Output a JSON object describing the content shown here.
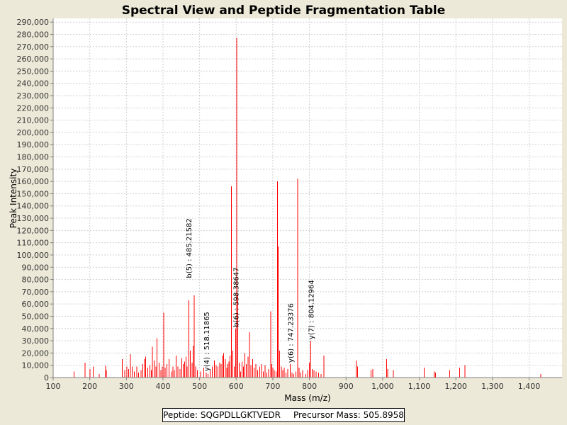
{
  "chart_data": {
    "type": "bar",
    "title": "Spectral View and Peptide Fragmentation Table",
    "xlabel": "Mass (m/z)",
    "ylabel": "Peak Intensity",
    "xlim": [
      100,
      1490
    ],
    "ylim": [
      0,
      293000
    ],
    "x_ticks": [
      "100",
      "200",
      "300",
      "400",
      "500",
      "600",
      "700",
      "800",
      "900",
      "1,000",
      "1,100",
      "1,200",
      "1,300",
      "1,400"
    ],
    "y_ticks": [
      "0",
      "10,000",
      "20,000",
      "30,000",
      "40,000",
      "50,000",
      "60,000",
      "70,000",
      "80,000",
      "90,000",
      "100,000",
      "110,000",
      "120,000",
      "130,000",
      "140,000",
      "150,000",
      "160,000",
      "170,000",
      "180,000",
      "190,000",
      "200,000",
      "210,000",
      "220,000",
      "230,000",
      "240,000",
      "250,000",
      "260,000",
      "270,000",
      "280,000",
      "290,000"
    ],
    "grid": true,
    "bar_color": "#ff0000",
    "peaks": [
      {
        "x": 157,
        "y": 5000
      },
      {
        "x": 187,
        "y": 12000
      },
      {
        "x": 201,
        "y": 7000
      },
      {
        "x": 209,
        "y": 9000
      },
      {
        "x": 226,
        "y": 3000
      },
      {
        "x": 243,
        "y": 9500
      },
      {
        "x": 245,
        "y": 6000
      },
      {
        "x": 289,
        "y": 15000
      },
      {
        "x": 296,
        "y": 6000
      },
      {
        "x": 301,
        "y": 9000
      },
      {
        "x": 306,
        "y": 7000
      },
      {
        "x": 311,
        "y": 19000
      },
      {
        "x": 316,
        "y": 9000
      },
      {
        "x": 322,
        "y": 5000
      },
      {
        "x": 328,
        "y": 9000
      },
      {
        "x": 333,
        "y": 4000
      },
      {
        "x": 340,
        "y": 6000
      },
      {
        "x": 345,
        "y": 11000
      },
      {
        "x": 350,
        "y": 15000
      },
      {
        "x": 353,
        "y": 17000
      },
      {
        "x": 358,
        "y": 8000
      },
      {
        "x": 364,
        "y": 10000
      },
      {
        "x": 368,
        "y": 6000
      },
      {
        "x": 371,
        "y": 25000
      },
      {
        "x": 376,
        "y": 14000
      },
      {
        "x": 381,
        "y": 9000
      },
      {
        "x": 384,
        "y": 32000
      },
      {
        "x": 389,
        "y": 12000
      },
      {
        "x": 394,
        "y": 6000
      },
      {
        "x": 398,
        "y": 9000
      },
      {
        "x": 402,
        "y": 53000
      },
      {
        "x": 406,
        "y": 8000
      },
      {
        "x": 411,
        "y": 11000
      },
      {
        "x": 417,
        "y": 15000
      },
      {
        "x": 423,
        "y": 5000
      },
      {
        "x": 427,
        "y": 9000
      },
      {
        "x": 431,
        "y": 6000
      },
      {
        "x": 436,
        "y": 18000
      },
      {
        "x": 441,
        "y": 9000
      },
      {
        "x": 447,
        "y": 7000
      },
      {
        "x": 451,
        "y": 16000
      },
      {
        "x": 455,
        "y": 11000
      },
      {
        "x": 459,
        "y": 13000
      },
      {
        "x": 463,
        "y": 17000
      },
      {
        "x": 466,
        "y": 9000
      },
      {
        "x": 471,
        "y": 63000
      },
      {
        "x": 475,
        "y": 22000
      },
      {
        "x": 479,
        "y": 12000
      },
      {
        "x": 482,
        "y": 26000
      },
      {
        "x": 485.2,
        "y": 67000
      },
      {
        "x": 489,
        "y": 9000
      },
      {
        "x": 494,
        "y": 6000
      },
      {
        "x": 503,
        "y": 5000
      },
      {
        "x": 511,
        "y": 8000
      },
      {
        "x": 518.1,
        "y": 4000
      },
      {
        "x": 523,
        "y": 3000
      },
      {
        "x": 529,
        "y": 6000
      },
      {
        "x": 535,
        "y": 9000
      },
      {
        "x": 540,
        "y": 14000
      },
      {
        "x": 545,
        "y": 10000
      },
      {
        "x": 550,
        "y": 9000
      },
      {
        "x": 555,
        "y": 12000
      },
      {
        "x": 559,
        "y": 11000
      },
      {
        "x": 563,
        "y": 18000
      },
      {
        "x": 566,
        "y": 20000
      },
      {
        "x": 570,
        "y": 15000
      },
      {
        "x": 574,
        "y": 8000
      },
      {
        "x": 577,
        "y": 11000
      },
      {
        "x": 580,
        "y": 13000
      },
      {
        "x": 583,
        "y": 18000
      },
      {
        "x": 587,
        "y": 156000
      },
      {
        "x": 591,
        "y": 22000
      },
      {
        "x": 595,
        "y": 9000
      },
      {
        "x": 598.4,
        "y": 40000
      },
      {
        "x": 601,
        "y": 277000
      },
      {
        "x": 604,
        "y": 68000
      },
      {
        "x": 608,
        "y": 12000
      },
      {
        "x": 612,
        "y": 5000
      },
      {
        "x": 616,
        "y": 13000
      },
      {
        "x": 620,
        "y": 9000
      },
      {
        "x": 624,
        "y": 20000
      },
      {
        "x": 628,
        "y": 11000
      },
      {
        "x": 632,
        "y": 17000
      },
      {
        "x": 636,
        "y": 37000
      },
      {
        "x": 640,
        "y": 10000
      },
      {
        "x": 645,
        "y": 15000
      },
      {
        "x": 649,
        "y": 8000
      },
      {
        "x": 654,
        "y": 11000
      },
      {
        "x": 659,
        "y": 6000
      },
      {
        "x": 664,
        "y": 9000
      },
      {
        "x": 669,
        "y": 11000
      },
      {
        "x": 674,
        "y": 5000
      },
      {
        "x": 679,
        "y": 10000
      },
      {
        "x": 684,
        "y": 4000
      },
      {
        "x": 689,
        "y": 7000
      },
      {
        "x": 694,
        "y": 54000
      },
      {
        "x": 697,
        "y": 11000
      },
      {
        "x": 700,
        "y": 8000
      },
      {
        "x": 704,
        "y": 6000
      },
      {
        "x": 709,
        "y": 5000
      },
      {
        "x": 713,
        "y": 160000
      },
      {
        "x": 715,
        "y": 107000
      },
      {
        "x": 719,
        "y": 22000
      },
      {
        "x": 723,
        "y": 9000
      },
      {
        "x": 727,
        "y": 6000
      },
      {
        "x": 731,
        "y": 8000
      },
      {
        "x": 736,
        "y": 4000
      },
      {
        "x": 741,
        "y": 7000
      },
      {
        "x": 747.2,
        "y": 11000
      },
      {
        "x": 752,
        "y": 4000
      },
      {
        "x": 757,
        "y": 3000
      },
      {
        "x": 763,
        "y": 5000
      },
      {
        "x": 768,
        "y": 162000
      },
      {
        "x": 772,
        "y": 8000
      },
      {
        "x": 776,
        "y": 4000
      },
      {
        "x": 781,
        "y": 6000
      },
      {
        "x": 790,
        "y": 3000
      },
      {
        "x": 795,
        "y": 6000
      },
      {
        "x": 800,
        "y": 12000
      },
      {
        "x": 804.1,
        "y": 30000
      },
      {
        "x": 808,
        "y": 7000
      },
      {
        "x": 812,
        "y": 6000
      },
      {
        "x": 818,
        "y": 5000
      },
      {
        "x": 825,
        "y": 4000
      },
      {
        "x": 832,
        "y": 3000
      },
      {
        "x": 840,
        "y": 18000
      },
      {
        "x": 928,
        "y": 14000
      },
      {
        "x": 931,
        "y": 9000
      },
      {
        "x": 968,
        "y": 6000
      },
      {
        "x": 973,
        "y": 7000
      },
      {
        "x": 1011,
        "y": 15000
      },
      {
        "x": 1014,
        "y": 7000
      },
      {
        "x": 1029,
        "y": 6000
      },
      {
        "x": 1113,
        "y": 8000
      },
      {
        "x": 1141,
        "y": 5000
      },
      {
        "x": 1144,
        "y": 4000
      },
      {
        "x": 1183,
        "y": 6000
      },
      {
        "x": 1210,
        "y": 8000
      },
      {
        "x": 1225,
        "y": 10000
      },
      {
        "x": 1432,
        "y": 3000
      }
    ],
    "annotations": [
      {
        "x": 470.0,
        "y": 80000,
        "text": "b(5) : 485.21582"
      },
      {
        "x": 518.1,
        "y": 4000,
        "text": "y(4) : 518.11865"
      },
      {
        "x": 598.4,
        "y": 40000,
        "text": "b(6) : 598.38647"
      },
      {
        "x": 747.2,
        "y": 11000,
        "text": "y(6) : 747.23376"
      },
      {
        "x": 804.1,
        "y": 30000,
        "text": "y(7) : 804.12964"
      }
    ]
  },
  "footer": {
    "peptide": "Peptide: SQGPDLLGKTVEDR",
    "precursor": "Precursor Mass: 505.8958"
  }
}
